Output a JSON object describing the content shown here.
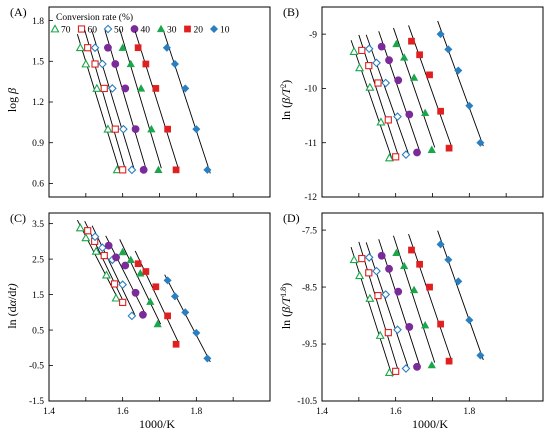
{
  "figure": {
    "legend_title": "Conversion rate (%)",
    "x_axis_title": "1000/K"
  },
  "chart_data": [
    {
      "type": "scatter",
      "panel_label": "(A)",
      "ylabel_main": "log ",
      "ylabel_italic": "β",
      "ylabel_tail": "",
      "ylabel_sup": "",
      "ylabel_end": "",
      "xlim": [
        1.4,
        2.0
      ],
      "ylim": [
        0.5,
        1.9
      ],
      "x_ticks": [
        "",
        "",
        "",
        "",
        "",
        "",
        ""
      ],
      "y_ticks": [
        "1.8",
        "1.5",
        "1.2",
        "0.9",
        "0.6"
      ],
      "series": [
        {
          "name": "70",
          "marker": "triangle-open",
          "color": "#1aa64a",
          "x": [
            1.485,
            1.5,
            1.53,
            1.56,
            1.585
          ],
          "y": [
            1.6,
            1.48,
            1.3,
            1.0,
            0.7
          ]
        },
        {
          "name": "60",
          "marker": "square-open",
          "color": "#e02020",
          "x": [
            1.505,
            1.525,
            1.55,
            1.58,
            1.6
          ],
          "y": [
            1.6,
            1.48,
            1.3,
            1.0,
            0.7
          ]
        },
        {
          "name": "50",
          "marker": "diamond-open",
          "color": "#2a7fc0",
          "x": [
            1.525,
            1.545,
            1.572,
            1.602,
            1.625
          ],
          "y": [
            1.6,
            1.48,
            1.3,
            1.0,
            0.7
          ]
        },
        {
          "name": "40",
          "marker": "circle-filled",
          "color": "#7b2a9a",
          "x": [
            1.56,
            1.58,
            1.607,
            1.635,
            1.657
          ],
          "y": [
            1.6,
            1.48,
            1.3,
            1.0,
            0.7
          ]
        },
        {
          "name": "30",
          "marker": "triangle-filled",
          "color": "#1aa64a",
          "x": [
            1.6,
            1.622,
            1.65,
            1.678,
            1.697
          ],
          "y": [
            1.6,
            1.48,
            1.3,
            1.0,
            0.7
          ]
        },
        {
          "name": "20",
          "marker": "square-filled",
          "color": "#e02020",
          "x": [
            1.642,
            1.663,
            1.69,
            1.722,
            1.745
          ],
          "y": [
            1.6,
            1.48,
            1.3,
            1.0,
            0.7
          ]
        },
        {
          "name": "10",
          "marker": "diamond-filled",
          "color": "#2a7fc0",
          "x": [
            1.72,
            1.742,
            1.77,
            1.8,
            1.83
          ],
          "y": [
            1.6,
            1.48,
            1.3,
            1.0,
            0.7
          ]
        }
      ]
    },
    {
      "type": "scatter",
      "panel_label": "(B)",
      "ylabel_main": "ln (",
      "ylabel_italic": "β",
      "ylabel_tail": "/T",
      "ylabel_sup": "2",
      "ylabel_end": ")",
      "xlim": [
        1.4,
        2.0
      ],
      "ylim": [
        -12,
        -8.5
      ],
      "x_ticks": [
        "",
        "",
        "",
        "",
        "",
        "",
        ""
      ],
      "y_ticks": [
        "-9",
        "-10",
        "-11",
        "-12"
      ],
      "series": [
        {
          "name": "70",
          "marker": "triangle-open",
          "color": "#1aa64a",
          "x": [
            1.487,
            1.502,
            1.53,
            1.56,
            1.583
          ],
          "y": [
            -9.32,
            -9.62,
            -9.98,
            -10.62,
            -11.28
          ]
        },
        {
          "name": "60",
          "marker": "square-open",
          "color": "#e02020",
          "x": [
            1.508,
            1.527,
            1.552,
            1.58,
            1.6
          ],
          "y": [
            -9.3,
            -9.58,
            -9.9,
            -10.58,
            -11.26
          ]
        },
        {
          "name": "50",
          "marker": "diamond-open",
          "color": "#2a7fc0",
          "x": [
            1.528,
            1.548,
            1.573,
            1.605,
            1.628
          ],
          "y": [
            -9.27,
            -9.53,
            -9.9,
            -10.52,
            -11.22
          ]
        },
        {
          "name": "40",
          "marker": "circle-filled",
          "color": "#7b2a9a",
          "x": [
            1.562,
            1.582,
            1.607,
            1.637,
            1.658
          ],
          "y": [
            -9.23,
            -9.48,
            -9.85,
            -10.48,
            -11.18
          ]
        },
        {
          "name": "30",
          "marker": "triangle-filled",
          "color": "#1aa64a",
          "x": [
            1.602,
            1.623,
            1.65,
            1.68,
            1.698
          ],
          "y": [
            -9.18,
            -9.43,
            -9.8,
            -10.45,
            -11.13
          ]
        },
        {
          "name": "20",
          "marker": "square-filled",
          "color": "#e02020",
          "x": [
            1.643,
            1.665,
            1.692,
            1.722,
            1.745
          ],
          "y": [
            -9.13,
            -9.38,
            -9.75,
            -10.42,
            -11.1
          ]
        },
        {
          "name": "10",
          "marker": "diamond-filled",
          "color": "#2a7fc0",
          "x": [
            1.722,
            1.743,
            1.77,
            1.8,
            1.83
          ],
          "y": [
            -9.0,
            -9.28,
            -9.67,
            -10.32,
            -11.0
          ]
        }
      ]
    },
    {
      "type": "scatter",
      "panel_label": "(C)",
      "ylabel_main": "ln (d",
      "ylabel_italic": "α",
      "ylabel_tail": "/d",
      "ylabel_sup": "",
      "ylabel_end": "t)",
      "xlim": [
        1.4,
        2.0
      ],
      "ylim": [
        -1.5,
        3.8
      ],
      "x_ticks": [
        "1.4",
        "1.6",
        "1.8"
      ],
      "x_tick_values": [
        1.4,
        1.6,
        1.8
      ],
      "y_ticks": [
        "3.5",
        "2.5",
        "1.5",
        "0.5",
        "-0.5",
        "-1.5"
      ],
      "series": [
        {
          "name": "70",
          "marker": "triangle-open",
          "color": "#1aa64a",
          "x": [
            1.485,
            1.5,
            1.528,
            1.556,
            1.582
          ],
          "y": [
            3.38,
            3.1,
            2.72,
            2.05,
            1.4
          ]
        },
        {
          "name": "60",
          "marker": "square-open",
          "color": "#e02020",
          "x": [
            1.505,
            1.524,
            1.55,
            1.578,
            1.6
          ],
          "y": [
            3.3,
            3.0,
            2.6,
            1.8,
            1.28
          ]
        },
        {
          "name": "50",
          "marker": "diamond-open",
          "color": "#2a7fc0",
          "x": [
            1.525,
            1.545,
            1.572,
            1.6,
            1.625
          ],
          "y": [
            3.13,
            2.82,
            2.48,
            1.78,
            0.9
          ]
        },
        {
          "name": "40",
          "marker": "circle-filled",
          "color": "#7b2a9a",
          "x": [
            1.562,
            1.582,
            1.607,
            1.635,
            1.655
          ],
          "y": [
            2.88,
            2.55,
            2.32,
            1.55,
            0.93
          ]
        },
        {
          "name": "30",
          "marker": "triangle-filled",
          "color": "#1aa64a",
          "x": [
            1.6,
            1.622,
            1.648,
            1.675,
            1.695
          ],
          "y": [
            2.7,
            2.48,
            2.1,
            1.3,
            0.67
          ]
        },
        {
          "name": "20",
          "marker": "square-filled",
          "color": "#e02020",
          "x": [
            1.642,
            1.663,
            1.69,
            1.722,
            1.745
          ],
          "y": [
            2.37,
            2.15,
            1.72,
            0.9,
            0.1
          ]
        },
        {
          "name": "10",
          "marker": "diamond-filled",
          "color": "#2a7fc0",
          "x": [
            1.722,
            1.742,
            1.77,
            1.8,
            1.83
          ],
          "y": [
            1.9,
            1.45,
            1.0,
            0.42,
            -0.3
          ]
        }
      ]
    },
    {
      "type": "scatter",
      "panel_label": "(D)",
      "ylabel_main": "ln (",
      "ylabel_italic": "β",
      "ylabel_tail": "/T",
      "ylabel_sup": "1.8",
      "ylabel_end": ")",
      "xlim": [
        1.4,
        2.0
      ],
      "ylim": [
        -10.5,
        -7.2
      ],
      "x_ticks": [
        "1.4",
        "1.6",
        "1.8"
      ],
      "x_tick_values": [
        1.4,
        1.6,
        1.8
      ],
      "y_ticks": [
        "-7.5",
        "-8.5",
        "-9.5",
        "-10.5"
      ],
      "series": [
        {
          "name": "70",
          "marker": "triangle-open",
          "color": "#1aa64a",
          "x": [
            1.487,
            1.502,
            1.53,
            1.558,
            1.583
          ],
          "y": [
            -8.02,
            -8.3,
            -8.7,
            -9.35,
            -10.0
          ]
        },
        {
          "name": "60",
          "marker": "square-open",
          "color": "#e02020",
          "x": [
            1.508,
            1.527,
            1.552,
            1.58,
            1.6
          ],
          "y": [
            -8.0,
            -8.25,
            -8.65,
            -9.3,
            -9.98
          ]
        },
        {
          "name": "50",
          "marker": "diamond-open",
          "color": "#2a7fc0",
          "x": [
            1.528,
            1.548,
            1.573,
            1.605,
            1.628
          ],
          "y": [
            -7.98,
            -8.22,
            -8.63,
            -9.25,
            -9.93
          ]
        },
        {
          "name": "40",
          "marker": "circle-filled",
          "color": "#7b2a9a",
          "x": [
            1.562,
            1.582,
            1.607,
            1.637,
            1.658
          ],
          "y": [
            -7.95,
            -8.18,
            -8.58,
            -9.2,
            -9.9
          ]
        },
        {
          "name": "30",
          "marker": "triangle-filled",
          "color": "#1aa64a",
          "x": [
            1.602,
            1.623,
            1.65,
            1.68,
            1.698
          ],
          "y": [
            -7.9,
            -8.13,
            -8.55,
            -9.17,
            -9.87
          ]
        },
        {
          "name": "20",
          "marker": "square-filled",
          "color": "#e02020",
          "x": [
            1.643,
            1.665,
            1.692,
            1.722,
            1.745
          ],
          "y": [
            -7.85,
            -8.1,
            -8.5,
            -9.15,
            -9.8
          ]
        },
        {
          "name": "10",
          "marker": "diamond-filled",
          "color": "#2a7fc0",
          "x": [
            1.722,
            1.743,
            1.77,
            1.8,
            1.83
          ],
          "y": [
            -7.75,
            -8.02,
            -8.4,
            -9.08,
            -9.7
          ]
        }
      ]
    }
  ]
}
